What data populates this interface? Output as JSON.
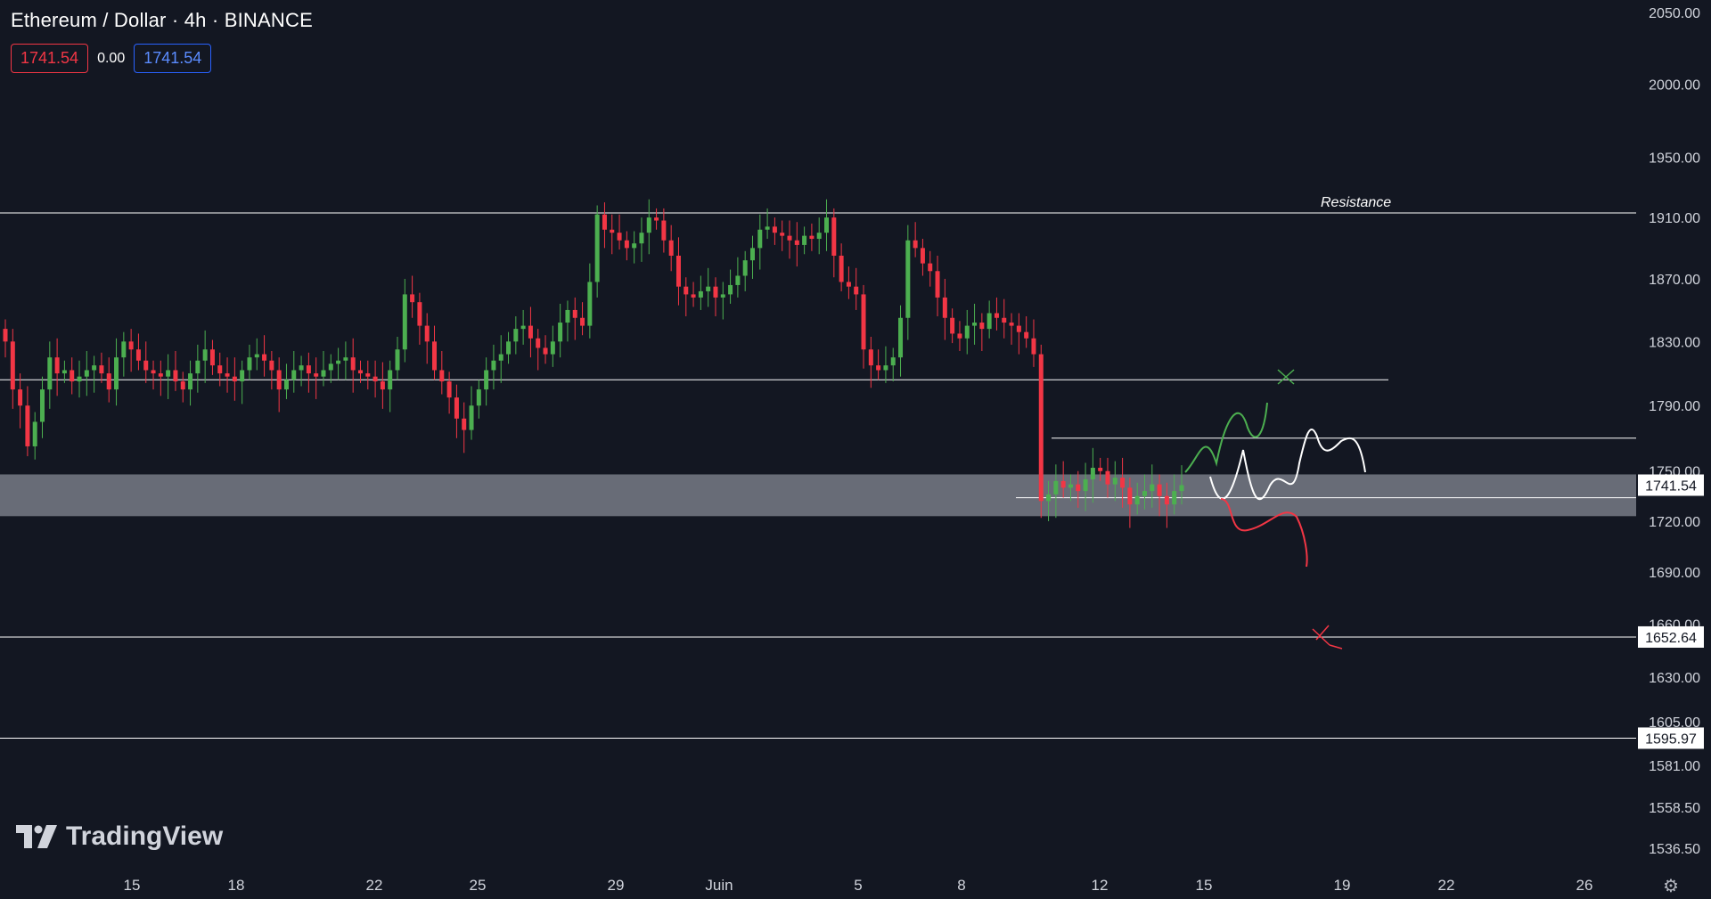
{
  "header": {
    "symbol_title": "Ethereum / Dollar · 4h · BINANCE",
    "open_value": "1741.54",
    "change_value": "0.00",
    "close_value": "1741.54"
  },
  "brand": {
    "name": "TradingView",
    "logo_icon": "tradingview-logo-icon"
  },
  "icons": {
    "settings": "settings-icon"
  },
  "colors": {
    "background": "#131722",
    "up": "#4caf50",
    "down": "#f23645",
    "zone": "#787b86",
    "line": "#ffffff"
  },
  "chart_data": {
    "type": "candlestick",
    "title": "Ethereum / Dollar · 4h · BINANCE",
    "ylim": [
      1536.5,
      2050
    ],
    "y_scale": "log",
    "y_ticks": [
      "2050.00",
      "2000.00",
      "1950.00",
      "1910.00",
      "1870.00",
      "1830.00",
      "1790.00",
      "1750.00",
      "1720.00",
      "1690.00",
      "1660.00",
      "1630.00",
      "1605.00",
      "1581.00",
      "1558.50",
      "1536.50"
    ],
    "x_ticks": [
      "15",
      "18",
      "22",
      "25",
      "29",
      "Juin",
      "5",
      "8",
      "12",
      "15",
      "19",
      "22",
      "26"
    ],
    "last_price": 1741.54,
    "price_labels": [
      "1741.54",
      "1652.64",
      "1595.97"
    ],
    "levels": [
      {
        "name": "resistance",
        "price": 1913,
        "label": "Resistance"
      },
      {
        "name": "level-1806",
        "price": 1806,
        "label": ""
      },
      {
        "name": "level-1770",
        "price": 1770,
        "label": ""
      },
      {
        "name": "level-1734",
        "price": 1734,
        "label": ""
      },
      {
        "name": "level-1652",
        "price": 1652.64,
        "label": ""
      },
      {
        "name": "level-1596",
        "price": 1595.97,
        "label": ""
      }
    ],
    "support_zone": {
      "low": 1723,
      "high": 1748
    },
    "close_series": [
      1830,
      1800,
      1790,
      1765,
      1780,
      1800,
      1820,
      1810,
      1812,
      1805,
      1808,
      1812,
      1815,
      1810,
      1800,
      1820,
      1830,
      1825,
      1818,
      1812,
      1810,
      1808,
      1812,
      1805,
      1800,
      1810,
      1818,
      1825,
      1815,
      1810,
      1808,
      1805,
      1812,
      1820,
      1822,
      1818,
      1812,
      1800,
      1806,
      1812,
      1815,
      1810,
      1808,
      1812,
      1816,
      1818,
      1820,
      1812,
      1810,
      1808,
      1805,
      1800,
      1812,
      1825,
      1860,
      1855,
      1840,
      1830,
      1812,
      1805,
      1795,
      1782,
      1775,
      1790,
      1800,
      1812,
      1818,
      1822,
      1830,
      1838,
      1840,
      1832,
      1826,
      1822,
      1830,
      1842,
      1850,
      1845,
      1840,
      1868,
      1912,
      1902,
      1900,
      1895,
      1890,
      1893,
      1900,
      1910,
      1908,
      1895,
      1885,
      1865,
      1860,
      1858,
      1862,
      1865,
      1858,
      1860,
      1866,
      1872,
      1882,
      1890,
      1902,
      1904,
      1900,
      1898,
      1895,
      1892,
      1898,
      1896,
      1900,
      1910,
      1885,
      1868,
      1865,
      1860,
      1825,
      1815,
      1812,
      1815,
      1820,
      1845,
      1895,
      1890,
      1880,
      1875,
      1858,
      1845,
      1835,
      1832,
      1840,
      1842,
      1838,
      1848,
      1845,
      1842,
      1840,
      1836,
      1832,
      1822,
      1732,
      1736,
      1744,
      1740,
      1742,
      1738,
      1745,
      1752,
      1750,
      1742,
      1746,
      1740,
      1730,
      1735,
      1738,
      1742,
      1735,
      1730,
      1738,
      1741.54
    ]
  }
}
